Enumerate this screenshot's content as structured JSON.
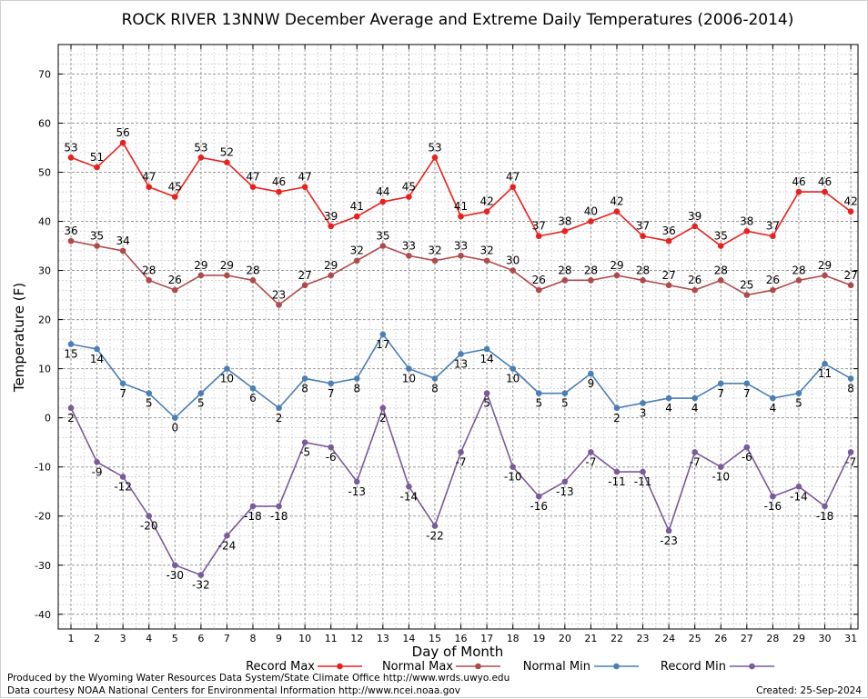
{
  "chart_data": {
    "type": "line",
    "title": "ROCK RIVER 13NNW December Average and Extreme Daily Temperatures (2006-2014)",
    "xlabel": "Day of Month",
    "ylabel": "Temperature (F)",
    "ylim": [
      -43,
      76
    ],
    "yticks": [
      -40,
      -30,
      -20,
      -10,
      0,
      10,
      20,
      30,
      40,
      50,
      60,
      70
    ],
    "x": [
      1,
      2,
      3,
      4,
      5,
      6,
      7,
      8,
      9,
      10,
      11,
      12,
      13,
      14,
      15,
      16,
      17,
      18,
      19,
      20,
      21,
      22,
      23,
      24,
      25,
      26,
      27,
      28,
      29,
      30,
      31
    ],
    "grid": true,
    "legend_position": "bottom",
    "series": [
      {
        "name": "Record Max",
        "color": "#e8211f",
        "label_pos": "above",
        "values": [
          53,
          51,
          56,
          47,
          45,
          53,
          52,
          47,
          46,
          47,
          39,
          41,
          44,
          45,
          53,
          41,
          42,
          47,
          37,
          38,
          40,
          42,
          37,
          36,
          39,
          35,
          38,
          37,
          46,
          46,
          42
        ]
      },
      {
        "name": "Normal Max",
        "color": "#b04a4a",
        "label_pos": "above",
        "values": [
          36,
          35,
          34,
          28,
          26,
          29,
          29,
          28,
          23,
          27,
          29,
          32,
          35,
          33,
          32,
          33,
          32,
          30,
          26,
          28,
          28,
          29,
          28,
          27,
          26,
          28,
          25,
          26,
          28,
          29,
          27
        ]
      },
      {
        "name": "Normal Min",
        "color": "#4a7fb5",
        "label_pos": "below",
        "values": [
          15,
          14,
          7,
          5,
          0,
          5,
          10,
          6,
          2,
          8,
          7,
          8,
          17,
          10,
          8,
          13,
          14,
          10,
          5,
          5,
          9,
          2,
          3,
          4,
          4,
          7,
          7,
          4,
          5,
          11,
          8
        ]
      },
      {
        "name": "Record Min",
        "color": "#7a5a9a",
        "label_pos": "below",
        "values": [
          2,
          -9,
          -12,
          -20,
          -30,
          -32,
          -24,
          -18,
          -18,
          -5,
          -6,
          -13,
          2,
          -14,
          -22,
          -7,
          5,
          -10,
          -16,
          -13,
          -7,
          -11,
          -11,
          -23,
          -7,
          -10,
          -6,
          -16,
          -14,
          -18,
          -7
        ]
      }
    ]
  },
  "footer": {
    "line1": "Produced by the Wyoming Water Resources Data System/State Climate Office http://www.wrds.uwyo.edu",
    "line2": "Data courtesy NOAA National Centers for Environmental Information http://www.ncei.noaa.gov",
    "created": "Created:  25-Sep-2024"
  }
}
